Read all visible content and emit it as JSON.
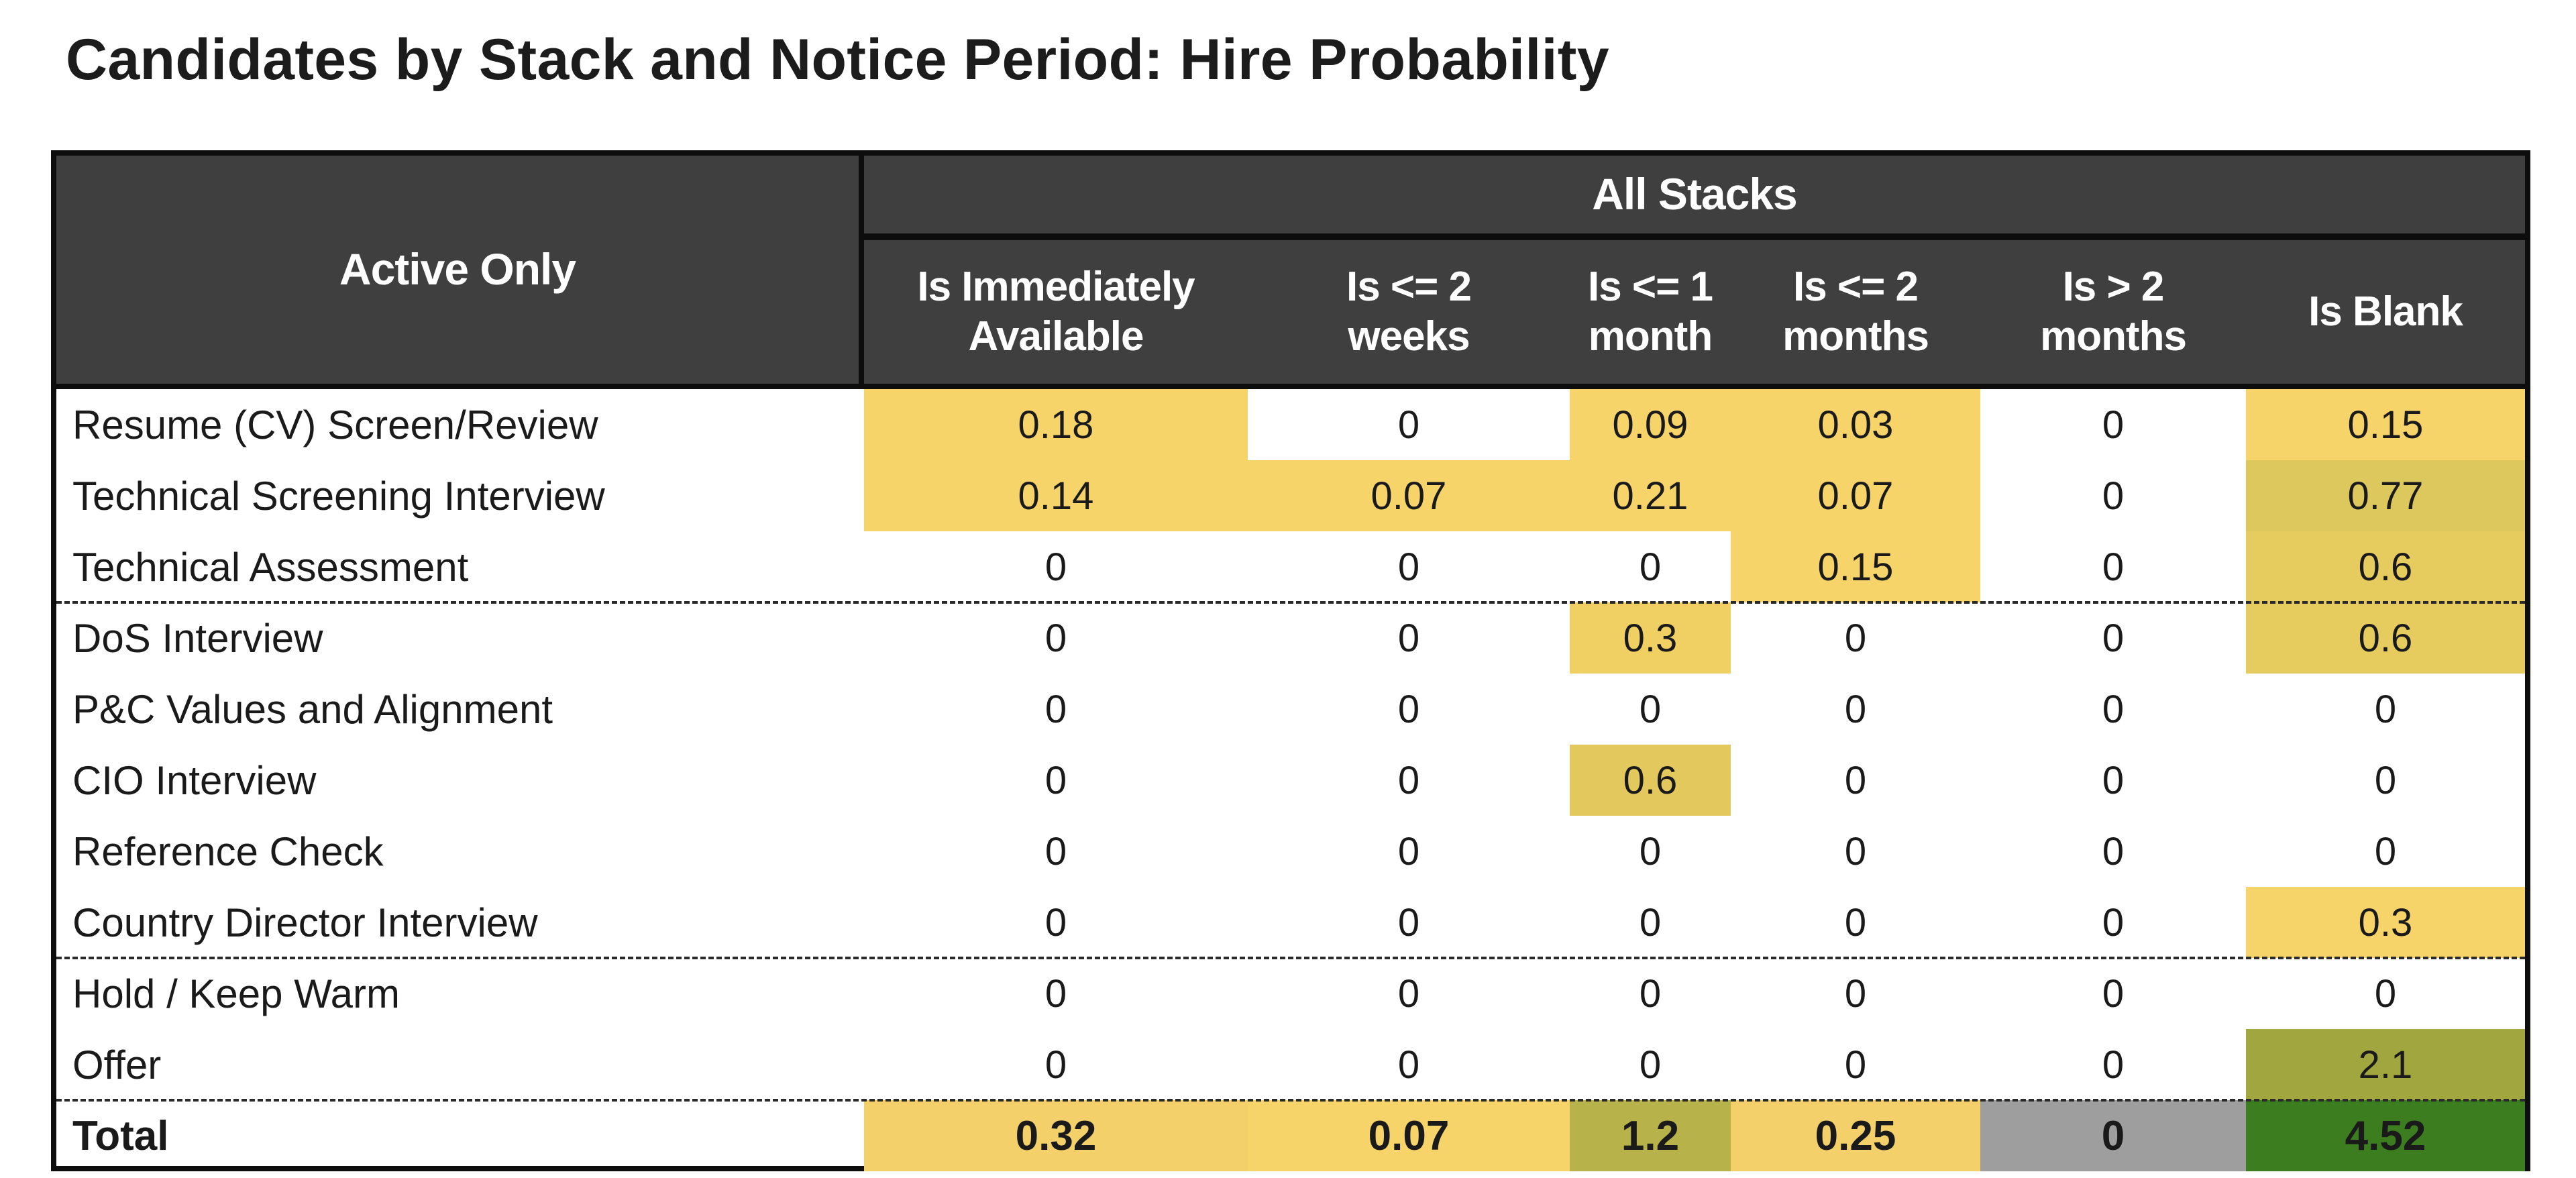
{
  "title": "Candidates by Stack and Notice Period: Hire Probability",
  "chart_data": {
    "type": "table",
    "title": "Candidates by Stack and Notice Period: Hire Probability",
    "row_header": "Active Only",
    "column_group": "All Stacks",
    "columns": [
      "Is Immediately\nAvailable",
      "Is <= 2\nweeks",
      "Is <= 1\nmonth",
      "Is <= 2\nmonths",
      "Is > 2\nmonths",
      "Is Blank"
    ],
    "rows": [
      {
        "label": "Resume (CV) Screen/Review",
        "values": [
          "0.18",
          "0",
          "0.09",
          "0.03",
          "0",
          "0.15"
        ],
        "colors": [
          "#f6d469",
          "#ffffff",
          "#f6d469",
          "#f6d469",
          "#ffffff",
          "#f6d469"
        ]
      },
      {
        "label": "Technical Screening Interview",
        "values": [
          "0.14",
          "0.07",
          "0.21",
          "0.07",
          "0",
          "0.77"
        ],
        "colors": [
          "#f6d469",
          "#f6d469",
          "#f6d469",
          "#f6d469",
          "#ffffff",
          "#dcc85d"
        ]
      },
      {
        "label": "Technical Assessment",
        "values": [
          "0",
          "0",
          "0",
          "0.15",
          "0",
          "0.6"
        ],
        "colors": [
          "#ffffff",
          "#ffffff",
          "#ffffff",
          "#f6d469",
          "#ffffff",
          "#e6cc5e"
        ]
      },
      {
        "label": "DoS Interview",
        "values": [
          "0",
          "0",
          "0.3",
          "0",
          "0",
          "0.6"
        ],
        "colors": [
          "#ffffff",
          "#ffffff",
          "#f0d063",
          "#ffffff",
          "#ffffff",
          "#e6cc5e"
        ]
      },
      {
        "label": "P&C Values and Alignment",
        "values": [
          "0",
          "0",
          "0",
          "0",
          "0",
          "0"
        ],
        "colors": [
          "#ffffff",
          "#ffffff",
          "#ffffff",
          "#ffffff",
          "#ffffff",
          "#ffffff"
        ]
      },
      {
        "label": "CIO Interview",
        "values": [
          "0",
          "0",
          "0.6",
          "0",
          "0",
          "0"
        ],
        "colors": [
          "#ffffff",
          "#ffffff",
          "#e3c95d",
          "#ffffff",
          "#ffffff",
          "#ffffff"
        ]
      },
      {
        "label": "Reference Check",
        "values": [
          "0",
          "0",
          "0",
          "0",
          "0",
          "0"
        ],
        "colors": [
          "#ffffff",
          "#ffffff",
          "#ffffff",
          "#ffffff",
          "#ffffff",
          "#ffffff"
        ]
      },
      {
        "label": "Country Director Interview",
        "values": [
          "0",
          "0",
          "0",
          "0",
          "0",
          "0.3"
        ],
        "colors": [
          "#ffffff",
          "#ffffff",
          "#ffffff",
          "#ffffff",
          "#ffffff",
          "#f6d469"
        ]
      },
      {
        "label": "Hold / Keep Warm",
        "values": [
          "0",
          "0",
          "0",
          "0",
          "0",
          "0"
        ],
        "colors": [
          "#ffffff",
          "#ffffff",
          "#ffffff",
          "#ffffff",
          "#ffffff",
          "#ffffff"
        ]
      },
      {
        "label": "Offer",
        "values": [
          "0",
          "0",
          "0",
          "0",
          "0",
          "2.1"
        ],
        "colors": [
          "#ffffff",
          "#ffffff",
          "#ffffff",
          "#ffffff",
          "#ffffff",
          "#a1a73e"
        ]
      }
    ],
    "total": {
      "label": "Total",
      "values": [
        "0.32",
        "0.07",
        "1.2",
        "0.25",
        "0",
        "4.52"
      ],
      "colors": [
        "#f3d06a",
        "#f6d469",
        "#b7b34a",
        "#f3d06a",
        "#9e9e9e",
        "#3c7d20"
      ]
    }
  }
}
